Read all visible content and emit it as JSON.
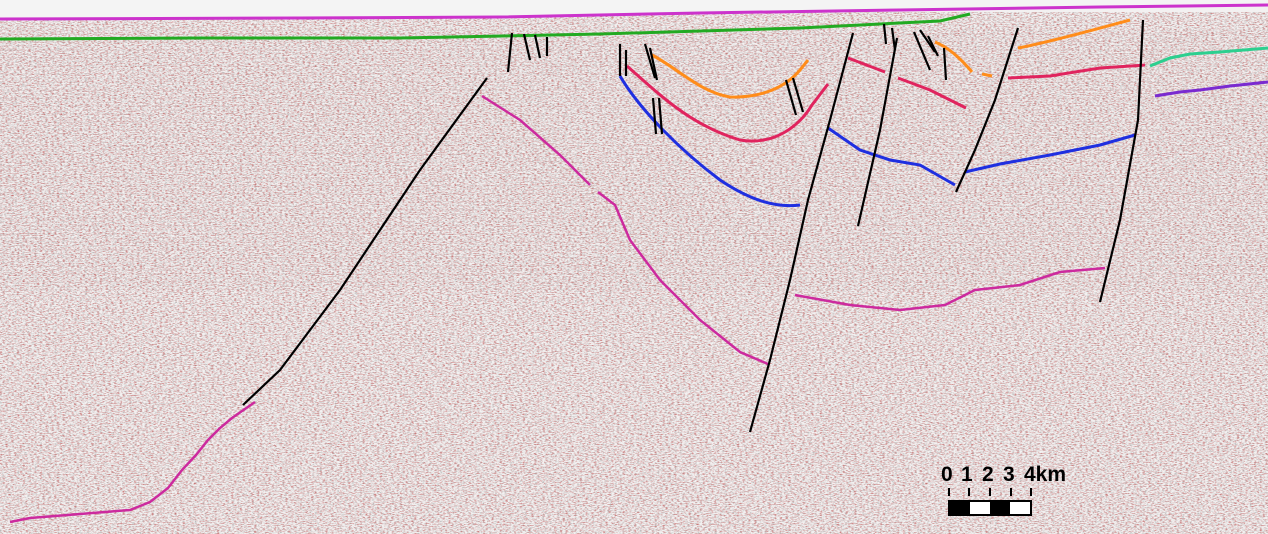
{
  "figure": {
    "type": "interpreted seismic section",
    "horizon_colors": {
      "seafloor_magenta": "#cc33cc",
      "green": "#22aa22",
      "orange": "#ff8c1a",
      "red_pink": "#e0245e",
      "blue": "#1f2fe0",
      "deep_magenta": "#cc2a9e",
      "teal": "#2ccf8f",
      "purple": "#7a2ad0",
      "faults": "#000000"
    }
  },
  "scale_bar": {
    "labels": [
      "0",
      "1",
      "2",
      "3",
      "4km"
    ],
    "unit": "km",
    "segments": [
      "black",
      "white",
      "black",
      "white"
    ]
  }
}
